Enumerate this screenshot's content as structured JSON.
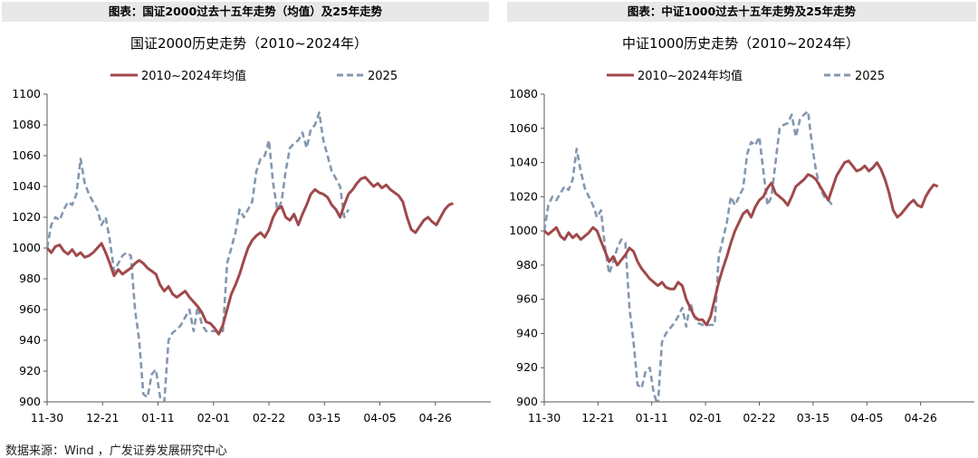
{
  "banners": {
    "left": "图表：国证2000过去十五年走势（均值）及25年走势",
    "right": "图表：中证1000过去十五年走势及25年走势"
  },
  "footer": "数据来源：Wind ，广发证券发展研究中心",
  "colors": {
    "avg": "#A0494B",
    "y2025": "#8497B0",
    "axis": "#595959"
  },
  "chart_data": [
    {
      "type": "line",
      "title": "国证2000历史走势（2010~2024年）",
      "xlabel": "",
      "ylabel": "",
      "ylim": [
        900,
        1100
      ],
      "yticks": [
        900,
        920,
        940,
        960,
        980,
        1000,
        1020,
        1040,
        1060,
        1080,
        1100
      ],
      "x_ticks": [
        "11-30",
        "12-21",
        "01-11",
        "02-01",
        "02-22",
        "03-15",
        "04-05",
        "04-26"
      ],
      "x_count": 107,
      "legend": "top",
      "series": [
        {
          "name": "2010~2024年均值",
          "style": "solid",
          "values": [
            1000,
            997,
            1001,
            1002,
            998,
            996,
            999,
            995,
            997,
            994,
            995,
            997,
            1000,
            1003,
            997,
            990,
            982,
            986,
            983,
            985,
            987,
            990,
            992,
            990,
            987,
            985,
            983,
            976,
            972,
            975,
            970,
            968,
            970,
            972,
            968,
            965,
            962,
            958,
            952,
            951,
            948,
            944,
            950,
            960,
            970,
            976,
            983,
            992,
            1000,
            1005,
            1008,
            1010,
            1007,
            1012,
            1020,
            1025,
            1027,
            1020,
            1018,
            1022,
            1015,
            1022,
            1028,
            1035,
            1038,
            1036,
            1035,
            1033,
            1028,
            1025,
            1020,
            1028,
            1035,
            1038,
            1042,
            1045,
            1046,
            1043,
            1040,
            1042,
            1039,
            1041,
            1038,
            1036,
            1034,
            1030,
            1020,
            1012,
            1010,
            1014,
            1018,
            1020,
            1017,
            1015,
            1020,
            1025,
            1028,
            1029
          ]
        },
        {
          "name": "2025",
          "style": "dashed",
          "values": [
            1000,
            1015,
            1020,
            1018,
            1025,
            1030,
            1028,
            1035,
            1058,
            1042,
            1035,
            1030,
            1025,
            1015,
            1020,
            1005,
            985,
            990,
            995,
            997,
            995,
            960,
            940,
            905,
            903,
            918,
            921,
            903,
            900,
            940,
            945,
            947,
            950,
            955,
            960,
            946,
            962,
            950,
            946,
            946,
            946,
            946,
            946,
            990,
            1000,
            1010,
            1025,
            1020,
            1025,
            1030,
            1050,
            1058,
            1060,
            1070,
            1042,
            1025,
            1030,
            1050,
            1065,
            1068,
            1070,
            1075,
            1065,
            1077,
            1080,
            1088,
            1070,
            1060,
            1050,
            1045,
            1040,
            1020,
            1025
          ]
        }
      ]
    },
    {
      "type": "line",
      "title": "中证1000历史走势（2010~2024年）",
      "xlabel": "",
      "ylabel": "",
      "ylim": [
        900,
        1080
      ],
      "yticks": [
        900,
        920,
        940,
        960,
        980,
        1000,
        1020,
        1040,
        1060,
        1080
      ],
      "x_ticks": [
        "11-30",
        "12-21",
        "01-11",
        "02-01",
        "02-22",
        "03-15",
        "04-05",
        "04-26"
      ],
      "x_count": 107,
      "legend": "top",
      "series": [
        {
          "name": "2010~2024年均值",
          "style": "solid",
          "values": [
            1000,
            998,
            1000,
            1002,
            997,
            995,
            999,
            996,
            998,
            995,
            997,
            999,
            1002,
            1000,
            994,
            988,
            982,
            985,
            980,
            983,
            986,
            990,
            988,
            982,
            978,
            975,
            972,
            970,
            968,
            970,
            967,
            966,
            966,
            970,
            968,
            960,
            955,
            950,
            948,
            948,
            945,
            950,
            960,
            970,
            978,
            985,
            993,
            1000,
            1005,
            1010,
            1012,
            1008,
            1014,
            1018,
            1020,
            1025,
            1028,
            1022,
            1020,
            1018,
            1015,
            1020,
            1026,
            1028,
            1030,
            1033,
            1032,
            1030,
            1026,
            1022,
            1018,
            1025,
            1032,
            1036,
            1040,
            1041,
            1038,
            1035,
            1036,
            1038,
            1035,
            1037,
            1040,
            1036,
            1030,
            1022,
            1012,
            1008,
            1010,
            1013,
            1016,
            1018,
            1015,
            1014,
            1020,
            1024,
            1027,
            1026
          ]
        },
        {
          "name": "2025",
          "style": "dashed",
          "values": [
            1000,
            1015,
            1020,
            1018,
            1022,
            1026,
            1024,
            1030,
            1048,
            1035,
            1025,
            1020,
            1015,
            1008,
            1012,
            990,
            975,
            982,
            990,
            995,
            993,
            955,
            935,
            910,
            908,
            918,
            920,
            905,
            898,
            935,
            940,
            943,
            946,
            950,
            955,
            944,
            958,
            950,
            946,
            945,
            945,
            945,
            945,
            985,
            995,
            1005,
            1020,
            1015,
            1020,
            1025,
            1045,
            1052,
            1050,
            1055,
            1035,
            1015,
            1020,
            1040,
            1060,
            1062,
            1063,
            1068,
            1055,
            1065,
            1068,
            1070,
            1050,
            1035,
            1025,
            1020,
            1018,
            1015
          ]
        }
      ]
    }
  ]
}
